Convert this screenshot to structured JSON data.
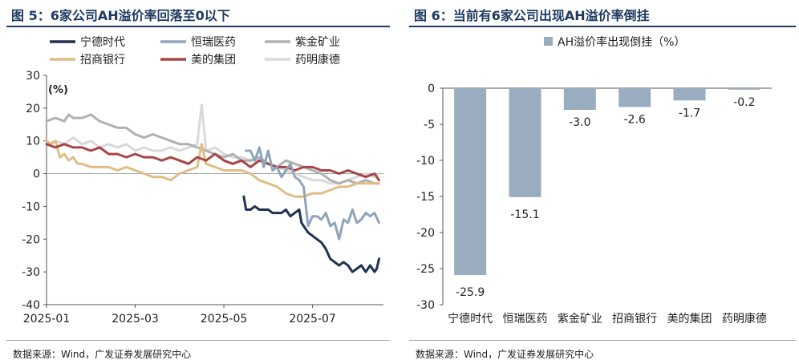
{
  "left_panel": {
    "title": "图 5：6家公司AH溢价率回落至0以下",
    "source": "数据来源：Wind，广发证券发展研究中心"
  },
  "right_panel": {
    "title": "图 6：当前有6家公司出现AH溢价率倒挂",
    "source": "数据来源：Wind，广发证券发展研究中心"
  },
  "colors": {
    "宁德时代": "#1f3350",
    "恒瑞医药": "#8fa5bb",
    "紫金矿业": "#b0b0b0",
    "招商银行": "#dfbd85",
    "美的集团": "#a84545",
    "药明康德": "#d9d9d9",
    "bar": "#9aadc0",
    "title": "#1f3a60"
  },
  "chart_data": [
    {
      "type": "line",
      "ylabel": "(%)",
      "ylim": [
        -40,
        30
      ],
      "yticks": [
        30,
        20,
        10,
        0,
        -10,
        -20,
        -30,
        -40
      ],
      "x_ticks": [
        "2025-01",
        "2025-03",
        "2025-05",
        "2025-07"
      ],
      "x_tick_positions": [
        0,
        2,
        4,
        6
      ],
      "x_range": [
        0,
        7.6
      ],
      "x_unit": "month index (0 = 2025-01 start)",
      "legend_position": "top-left",
      "series": [
        {
          "name": "宁德时代",
          "points": [
            [
              4.45,
              -7
            ],
            [
              4.5,
              -11
            ],
            [
              4.6,
              -11
            ],
            [
              4.7,
              -10
            ],
            [
              4.8,
              -11
            ],
            [
              4.9,
              -11
            ],
            [
              5.0,
              -11
            ],
            [
              5.1,
              -12
            ],
            [
              5.2,
              -12
            ],
            [
              5.3,
              -12
            ],
            [
              5.4,
              -11
            ],
            [
              5.5,
              -13
            ],
            [
              5.6,
              -12
            ],
            [
              5.7,
              -11
            ],
            [
              5.75,
              -15
            ],
            [
              5.8,
              -16
            ],
            [
              5.9,
              -18
            ],
            [
              6.0,
              -19
            ],
            [
              6.1,
              -20
            ],
            [
              6.2,
              -21
            ],
            [
              6.3,
              -23
            ],
            [
              6.4,
              -26
            ],
            [
              6.5,
              -27
            ],
            [
              6.6,
              -28
            ],
            [
              6.7,
              -27
            ],
            [
              6.8,
              -28
            ],
            [
              6.9,
              -30
            ],
            [
              7.0,
              -29
            ],
            [
              7.1,
              -28
            ],
            [
              7.2,
              -30
            ],
            [
              7.3,
              -28
            ],
            [
              7.4,
              -30
            ],
            [
              7.45,
              -29
            ],
            [
              7.5,
              -26
            ]
          ]
        },
        {
          "name": "恒瑞医药",
          "points": [
            [
              4.5,
              7
            ],
            [
              4.6,
              7
            ],
            [
              4.7,
              4
            ],
            [
              4.8,
              8
            ],
            [
              4.9,
              2
            ],
            [
              5.0,
              7
            ],
            [
              5.1,
              1
            ],
            [
              5.2,
              2
            ],
            [
              5.3,
              -1
            ],
            [
              5.4,
              1
            ],
            [
              5.5,
              3
            ],
            [
              5.6,
              -1
            ],
            [
              5.7,
              -2
            ],
            [
              5.8,
              -4
            ],
            [
              5.9,
              -16
            ],
            [
              6.0,
              -13
            ],
            [
              6.1,
              -13
            ],
            [
              6.2,
              -14
            ],
            [
              6.3,
              -12
            ],
            [
              6.4,
              -16
            ],
            [
              6.5,
              -15
            ],
            [
              6.6,
              -20
            ],
            [
              6.7,
              -14
            ],
            [
              6.8,
              -15
            ],
            [
              6.9,
              -11
            ],
            [
              7.0,
              -15
            ],
            [
              7.1,
              -14
            ],
            [
              7.2,
              -12
            ],
            [
              7.3,
              -13
            ],
            [
              7.4,
              -12
            ],
            [
              7.5,
              -15
            ]
          ]
        },
        {
          "name": "紫金矿业",
          "points": [
            [
              0,
              16
            ],
            [
              0.2,
              17
            ],
            [
              0.4,
              16
            ],
            [
              0.5,
              18
            ],
            [
              0.6,
              17
            ],
            [
              0.8,
              17
            ],
            [
              1.0,
              18
            ],
            [
              1.2,
              16
            ],
            [
              1.4,
              15
            ],
            [
              1.6,
              14
            ],
            [
              1.8,
              14
            ],
            [
              2.0,
              12
            ],
            [
              2.2,
              11
            ],
            [
              2.4,
              12
            ],
            [
              2.6,
              11
            ],
            [
              2.8,
              10
            ],
            [
              3.0,
              9
            ],
            [
              3.2,
              9
            ],
            [
              3.4,
              8
            ],
            [
              3.6,
              7
            ],
            [
              3.8,
              6
            ],
            [
              4.0,
              5
            ],
            [
              4.2,
              6
            ],
            [
              4.4,
              4
            ],
            [
              4.6,
              4
            ],
            [
              4.8,
              5
            ],
            [
              5.0,
              3
            ],
            [
              5.2,
              2
            ],
            [
              5.4,
              4
            ],
            [
              5.6,
              3
            ],
            [
              5.8,
              2
            ],
            [
              6.0,
              1
            ],
            [
              6.2,
              0
            ],
            [
              6.4,
              -2
            ],
            [
              6.6,
              -3
            ],
            [
              6.8,
              -2
            ],
            [
              7.0,
              -3
            ],
            [
              7.2,
              -2
            ],
            [
              7.4,
              -3
            ],
            [
              7.5,
              -3
            ]
          ]
        },
        {
          "name": "招商银行",
          "points": [
            [
              0,
              10
            ],
            [
              0.1,
              9
            ],
            [
              0.2,
              10
            ],
            [
              0.3,
              5
            ],
            [
              0.4,
              6
            ],
            [
              0.5,
              4
            ],
            [
              0.6,
              5
            ],
            [
              0.7,
              3
            ],
            [
              0.8,
              3
            ],
            [
              1.0,
              2
            ],
            [
              1.2,
              2
            ],
            [
              1.4,
              2
            ],
            [
              1.6,
              1
            ],
            [
              1.8,
              2
            ],
            [
              2.0,
              1
            ],
            [
              2.2,
              0
            ],
            [
              2.4,
              -1
            ],
            [
              2.6,
              -1
            ],
            [
              2.8,
              -2
            ],
            [
              3.0,
              0
            ],
            [
              3.2,
              1
            ],
            [
              3.4,
              2
            ],
            [
              3.5,
              9
            ],
            [
              3.6,
              3
            ],
            [
              3.8,
              2
            ],
            [
              4.0,
              1
            ],
            [
              4.2,
              1
            ],
            [
              4.4,
              1
            ],
            [
              4.6,
              0
            ],
            [
              4.8,
              -2
            ],
            [
              5.0,
              -3
            ],
            [
              5.2,
              -4
            ],
            [
              5.4,
              -6
            ],
            [
              5.6,
              -7
            ],
            [
              5.8,
              -7
            ],
            [
              6.0,
              -6
            ],
            [
              6.2,
              -6
            ],
            [
              6.4,
              -5
            ],
            [
              6.6,
              -4
            ],
            [
              6.8,
              -4
            ],
            [
              7.0,
              -3
            ],
            [
              7.2,
              -3
            ],
            [
              7.4,
              -3
            ],
            [
              7.5,
              -3
            ]
          ]
        },
        {
          "name": "美的集团",
          "points": [
            [
              0,
              9
            ],
            [
              0.2,
              8
            ],
            [
              0.4,
              9
            ],
            [
              0.6,
              8
            ],
            [
              0.8,
              8
            ],
            [
              1.0,
              7
            ],
            [
              1.2,
              8
            ],
            [
              1.4,
              6
            ],
            [
              1.6,
              6
            ],
            [
              1.8,
              5
            ],
            [
              2.0,
              6
            ],
            [
              2.2,
              5
            ],
            [
              2.4,
              5
            ],
            [
              2.6,
              4
            ],
            [
              2.8,
              5
            ],
            [
              3.0,
              4
            ],
            [
              3.2,
              3
            ],
            [
              3.4,
              5
            ],
            [
              3.6,
              4
            ],
            [
              3.8,
              6
            ],
            [
              4.0,
              4
            ],
            [
              4.2,
              3
            ],
            [
              4.4,
              4
            ],
            [
              4.6,
              2
            ],
            [
              4.8,
              4
            ],
            [
              5.0,
              3
            ],
            [
              5.2,
              2
            ],
            [
              5.4,
              2
            ],
            [
              5.6,
              1
            ],
            [
              5.8,
              2
            ],
            [
              6.0,
              2
            ],
            [
              6.2,
              1
            ],
            [
              6.4,
              1
            ],
            [
              6.6,
              0
            ],
            [
              6.8,
              1
            ],
            [
              7.0,
              0
            ],
            [
              7.2,
              -1
            ],
            [
              7.4,
              0
            ],
            [
              7.5,
              -2
            ]
          ]
        },
        {
          "name": "药明康德",
          "points": [
            [
              0,
              9
            ],
            [
              0.2,
              10
            ],
            [
              0.4,
              9
            ],
            [
              0.6,
              11
            ],
            [
              0.8,
              9
            ],
            [
              1.0,
              10
            ],
            [
              1.2,
              8
            ],
            [
              1.4,
              9
            ],
            [
              1.6,
              8
            ],
            [
              1.8,
              9
            ],
            [
              2.0,
              7
            ],
            [
              2.2,
              8
            ],
            [
              2.4,
              7
            ],
            [
              2.6,
              7
            ],
            [
              2.8,
              8
            ],
            [
              3.0,
              7
            ],
            [
              3.2,
              8
            ],
            [
              3.4,
              9
            ],
            [
              3.5,
              21
            ],
            [
              3.6,
              7
            ],
            [
              3.8,
              8
            ],
            [
              4.0,
              6
            ],
            [
              4.2,
              5
            ],
            [
              4.4,
              5
            ],
            [
              4.6,
              4
            ],
            [
              4.8,
              4
            ],
            [
              5.0,
              3
            ],
            [
              5.2,
              2
            ],
            [
              5.4,
              1
            ],
            [
              5.6,
              0
            ],
            [
              5.8,
              -1
            ],
            [
              6.0,
              -2
            ],
            [
              6.2,
              -2
            ],
            [
              6.4,
              -3
            ],
            [
              6.6,
              -3
            ],
            [
              6.8,
              -2
            ],
            [
              7.0,
              -1
            ],
            [
              7.2,
              0
            ],
            [
              7.4,
              -1
            ],
            [
              7.5,
              0
            ]
          ]
        }
      ]
    },
    {
      "type": "bar",
      "legend": "AH溢价率出现倒挂（%）",
      "legend_position": "top-center",
      "categories": [
        "宁德时代",
        "恒瑞医药",
        "紫金矿业",
        "招商银行",
        "美的集团",
        "药明康德"
      ],
      "values": [
        -25.9,
        -15.1,
        -3.0,
        -2.6,
        -1.7,
        -0.2
      ],
      "value_labels": [
        "-25.9",
        "-15.1",
        "-3.0",
        "-2.6",
        "-1.7",
        "-0.2"
      ],
      "ylim": [
        -30,
        0
      ],
      "yticks": [
        0,
        -5,
        -10,
        -15,
        -20,
        -25,
        -30
      ]
    }
  ]
}
